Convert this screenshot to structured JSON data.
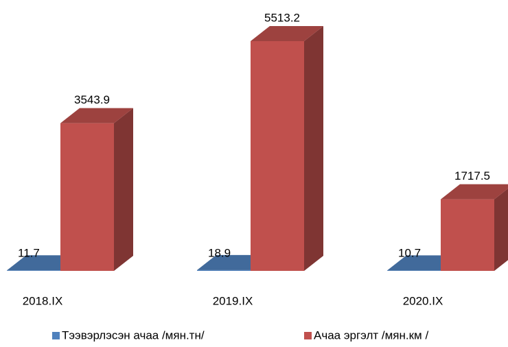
{
  "chart_data": {
    "type": "bar3d",
    "categories": [
      "2018.IX",
      "2019.IX",
      "2020.IX"
    ],
    "series": [
      {
        "name": "Тээвэрлэсэн ачаа /мян.тн/",
        "color": "#4f81bd",
        "values": [
          11.7,
          18.9,
          10.7
        ]
      },
      {
        "name": "Ачаа эргэлт /мян.км /",
        "color": "#c0504d",
        "values": [
          3543.9,
          5513.2,
          1717.5
        ]
      }
    ]
  }
}
